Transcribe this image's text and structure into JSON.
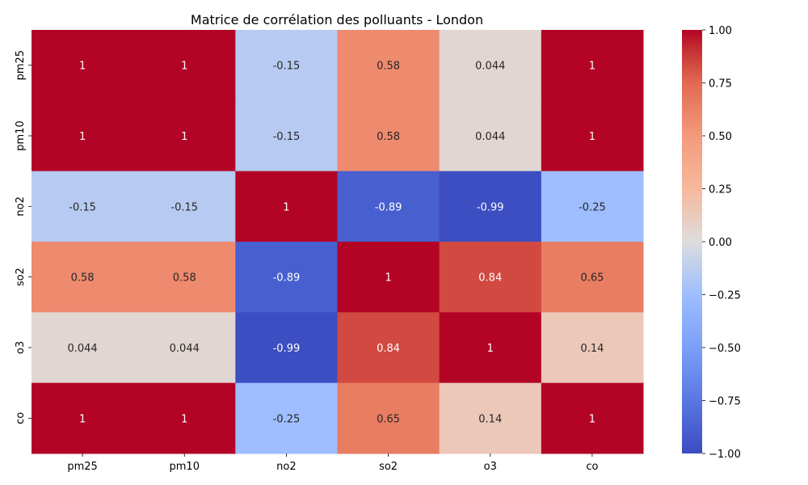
{
  "chart_data": {
    "type": "heatmap",
    "title": "Matrice de corrélation des polluants - London",
    "xlabel": "",
    "ylabel": "",
    "x_categories": [
      "pm25",
      "pm10",
      "no2",
      "so2",
      "o3",
      "co"
    ],
    "y_categories": [
      "pm25",
      "pm10",
      "no2",
      "so2",
      "o3",
      "co"
    ],
    "values": [
      [
        1,
        1,
        -0.15,
        0.58,
        0.044,
        1
      ],
      [
        1,
        1,
        -0.15,
        0.58,
        0.044,
        1
      ],
      [
        -0.15,
        -0.15,
        1,
        -0.89,
        -0.99,
        -0.25
      ],
      [
        0.58,
        0.58,
        -0.89,
        1,
        0.84,
        0.65
      ],
      [
        0.044,
        0.044,
        -0.99,
        0.84,
        1,
        0.14
      ],
      [
        1,
        1,
        -0.25,
        0.65,
        0.14,
        1
      ]
    ],
    "annotations": [
      [
        "1",
        "1",
        "-0.15",
        "0.58",
        "0.044",
        "1"
      ],
      [
        "1",
        "1",
        "-0.15",
        "0.58",
        "0.044",
        "1"
      ],
      [
        "-0.15",
        "-0.15",
        "1",
        "-0.89",
        "-0.99",
        "-0.25"
      ],
      [
        "0.58",
        "0.58",
        "-0.89",
        "1",
        "0.84",
        "0.65"
      ],
      [
        "0.044",
        "0.044",
        "-0.99",
        "0.84",
        "1",
        "0.14"
      ],
      [
        "1",
        "1",
        "-0.25",
        "0.65",
        "0.14",
        "1"
      ]
    ],
    "colormap": "coolwarm",
    "vmin": -1,
    "vmax": 1,
    "colorbar_ticks": [
      1.0,
      0.75,
      0.5,
      0.25,
      0.0,
      -0.25,
      -0.5,
      -0.75,
      -1.0
    ],
    "colorbar_tick_labels": [
      "1.00",
      "0.75",
      "0.50",
      "0.25",
      "0.00",
      "−0.25",
      "−0.50",
      "−0.75",
      "−1.00"
    ],
    "colormap_stops": [
      {
        "v": -1.0,
        "color": "#3b4cc0"
      },
      {
        "v": -0.75,
        "color": "#5977e3"
      },
      {
        "v": -0.5,
        "color": "#7b9ff9"
      },
      {
        "v": -0.25,
        "color": "#9ebeff"
      },
      {
        "v": 0.0,
        "color": "#dddddd"
      },
      {
        "v": 0.25,
        "color": "#f7b89c"
      },
      {
        "v": 0.5,
        "color": "#f49a7b"
      },
      {
        "v": 0.75,
        "color": "#e26952"
      },
      {
        "v": 0.9,
        "color": "#c53334"
      },
      {
        "v": 1.0,
        "color": "#b40426"
      }
    ]
  }
}
